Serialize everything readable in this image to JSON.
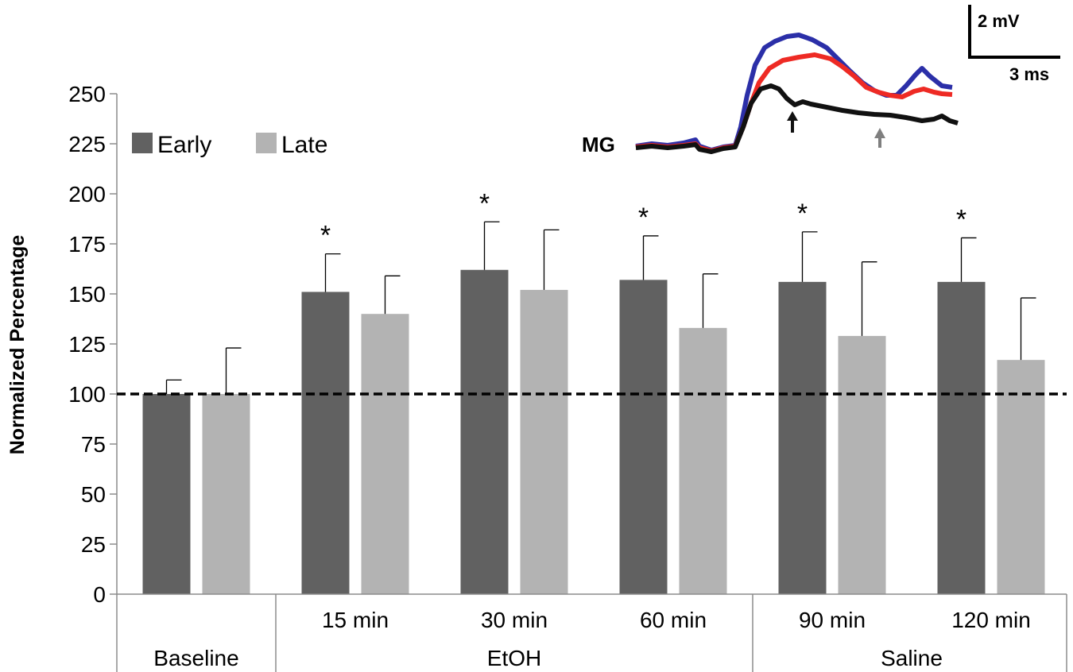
{
  "chart_data": {
    "type": "bar",
    "ylabel": "Normalized Percentage",
    "ylim": [
      0,
      250
    ],
    "yticks": [
      0,
      25,
      50,
      75,
      100,
      125,
      150,
      175,
      200,
      225,
      250
    ],
    "categories": [
      "Baseline",
      "15 min",
      "30 min",
      "60 min",
      "90 min",
      "120 min"
    ],
    "category_labels": [
      "",
      "15 min",
      "30 min",
      "60 min",
      "90 min",
      "120 min"
    ],
    "groups": [
      {
        "label": "Baseline",
        "categories": [
          "Baseline"
        ]
      },
      {
        "label": "EtOH",
        "categories": [
          "15 min",
          "30 min",
          "60 min"
        ]
      },
      {
        "label": "Saline",
        "categories": [
          "90 min",
          "120 min"
        ]
      }
    ],
    "series": [
      {
        "name": "Early",
        "color": "#616161",
        "values": [
          100,
          151,
          162,
          157,
          156,
          156
        ],
        "errors": [
          7,
          19,
          24,
          22,
          25,
          22
        ]
      },
      {
        "name": "Late",
        "color": "#b3b3b3",
        "values": [
          100,
          140,
          152,
          133,
          129,
          117
        ],
        "errors": [
          23,
          19,
          30,
          27,
          37,
          31
        ]
      }
    ],
    "significance": {
      "series": "Early",
      "categories": [
        "15 min",
        "30 min",
        "60 min",
        "90 min",
        "120 min"
      ],
      "marker": "*"
    },
    "reference_line": {
      "y": 100,
      "style": "dashed"
    },
    "legend": {
      "position": "top-left"
    },
    "inset": {
      "trace_label": "MG",
      "scale_voltage": "2 mV",
      "scale_time": "3 ms",
      "trace_colors": [
        "#2b2fa8",
        "#ee2a24",
        "#111111"
      ],
      "arrow_colors": [
        "#111111",
        "#7f7f7f"
      ]
    }
  }
}
